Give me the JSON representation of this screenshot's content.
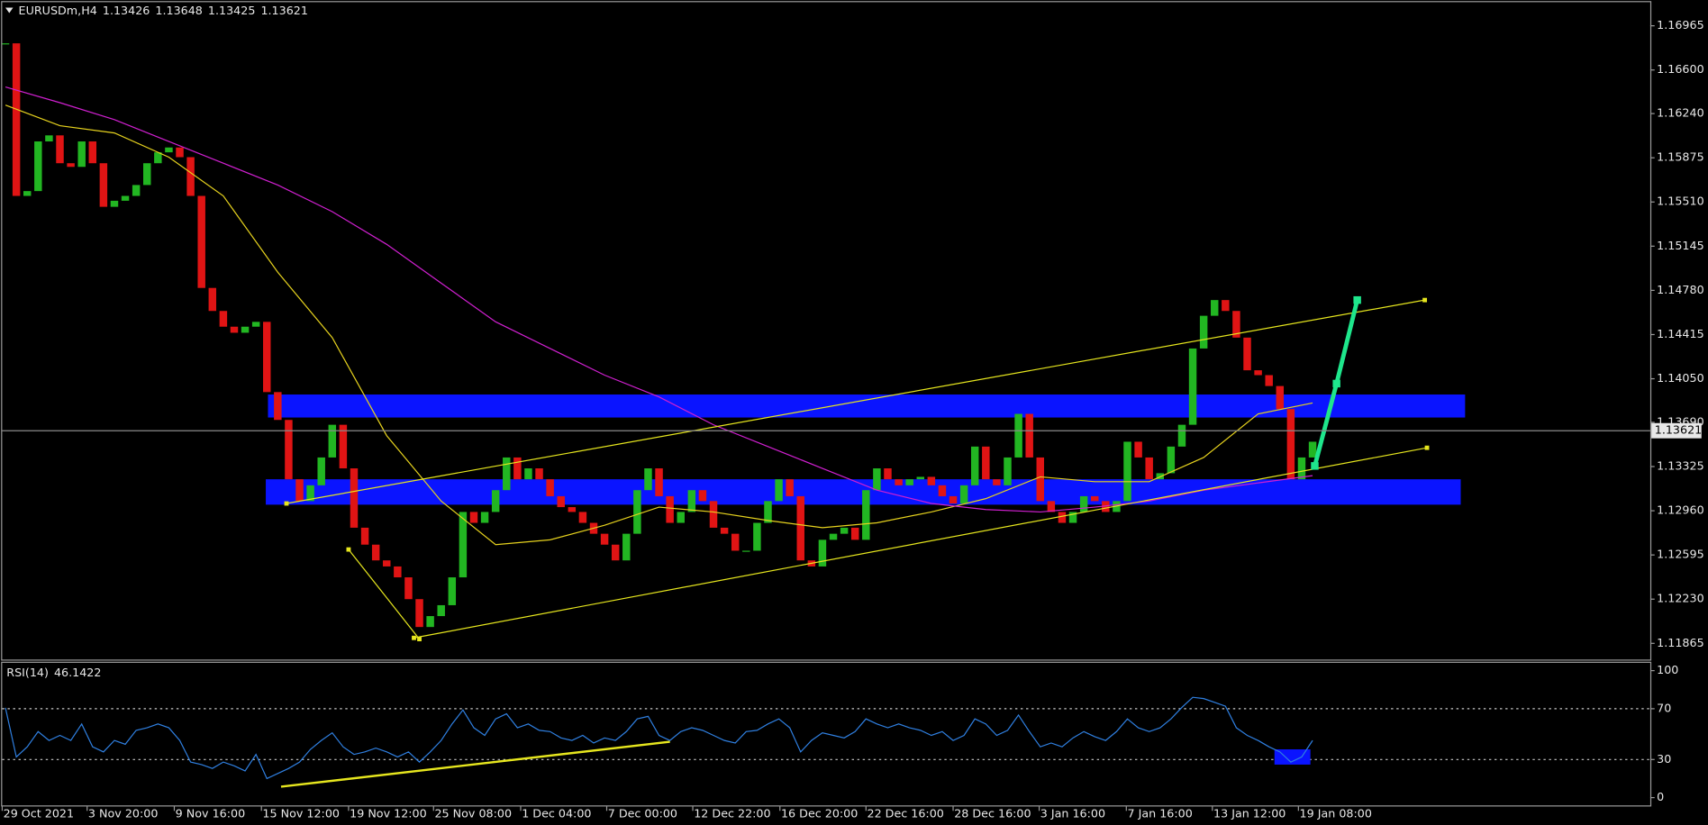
{
  "chart_data": [
    {
      "type": "candlestick",
      "symbol": "EURUSDm,H4",
      "ohlc": [
        1.13426,
        1.13648,
        1.13425,
        1.13621
      ],
      "current_price": 1.13621,
      "up_color": "#22b622",
      "down_color": "#e01414",
      "values": [
        1.1682,
        1.1556,
        1.156,
        1.1601,
        1.1606,
        1.1583,
        1.158,
        1.1601,
        1.1583,
        1.1547,
        1.1552,
        1.1556,
        1.1565,
        1.1583,
        1.1592,
        1.1596,
        1.1588,
        1.1556,
        1.148,
        1.1461,
        1.1448,
        1.1443,
        1.1448,
        1.1452,
        1.1394,
        1.1371,
        1.1322,
        1.1304,
        1.1317,
        1.134,
        1.1367,
        1.1331,
        1.1282,
        1.1268,
        1.1255,
        1.125,
        1.1241,
        1.1223,
        1.12,
        1.1209,
        1.1218,
        1.1241,
        1.1295,
        1.1286,
        1.1295,
        1.1313,
        1.134,
        1.1322,
        1.1331,
        1.1322,
        1.1308,
        1.1299,
        1.1295,
        1.1286,
        1.1277,
        1.1268,
        1.1255,
        1.1277,
        1.1313,
        1.1331,
        1.1308,
        1.1286,
        1.1295,
        1.1313,
        1.1304,
        1.1282,
        1.1277,
        1.1263,
        1.1263,
        1.1286,
        1.1304,
        1.1322,
        1.1308,
        1.1255,
        1.125,
        1.1272,
        1.1277,
        1.1282,
        1.1272,
        1.1313,
        1.1331,
        1.1322,
        1.1317,
        1.1322,
        1.1324,
        1.1317,
        1.1308,
        1.1302,
        1.1317,
        1.1349,
        1.1322,
        1.1317,
        1.134,
        1.1376,
        1.134,
        1.1304,
        1.1295,
        1.1286,
        1.1295,
        1.1308,
        1.1304,
        1.1295,
        1.1304,
        1.1353,
        1.134,
        1.1322,
        1.1327,
        1.1349,
        1.1367,
        1.143,
        1.1457,
        1.147,
        1.1461,
        1.1439,
        1.1412,
        1.1408,
        1.1399,
        1.138,
        1.1322,
        1.134,
        1.1353
      ],
      "overlays": [
        {
          "color": "#e6d21e",
          "x": [
            0,
            5,
            10,
            15,
            20,
            25,
            30,
            35,
            40,
            45,
            50,
            55,
            60,
            65,
            70,
            75,
            80,
            85,
            90,
            95,
            100,
            105,
            110,
            115,
            120
          ],
          "values": [
            1.1631,
            1.1614,
            1.1608,
            1.1588,
            1.1556,
            1.1493,
            1.1439,
            1.1358,
            1.1304,
            1.1268,
            1.1272,
            1.1284,
            1.1299,
            1.1295,
            1.1288,
            1.1282,
            1.1286,
            1.1295,
            1.1306,
            1.1324,
            1.132,
            1.132,
            1.134,
            1.1376,
            1.1385
          ]
        },
        {
          "color": "#d020d0",
          "x": [
            0,
            5,
            10,
            15,
            20,
            25,
            30,
            35,
            40,
            45,
            50,
            55,
            60,
            65,
            70,
            75,
            80,
            85,
            90,
            95,
            100,
            105,
            110,
            115,
            120
          ],
          "values": [
            1.1646,
            1.1633,
            1.1619,
            1.1601,
            1.1583,
            1.1565,
            1.1543,
            1.1516,
            1.1484,
            1.1452,
            1.143,
            1.1408,
            1.139,
            1.1367,
            1.1349,
            1.1331,
            1.1313,
            1.1302,
            1.1297,
            1.1295,
            1.1299,
            1.1304,
            1.1313,
            1.1319,
            1.1325
          ]
        }
      ],
      "zones": [
        {
          "color": "#0a14ff",
          "x": [
            24.1,
            134
          ],
          "range": [
            1.1373,
            1.1392
          ]
        },
        {
          "color": "#0a14ff",
          "x": [
            23.9,
            133.6
          ],
          "range": [
            1.1301,
            1.1322
          ]
        }
      ],
      "trendlines": [
        {
          "color": "#e6e61e",
          "x": [
            25.8,
            130.3
          ],
          "values": [
            1.1302,
            1.147
          ]
        },
        {
          "color": "#e6e61e",
          "x": [
            37.5,
            130.5
          ],
          "values": [
            1.1191,
            1.1348
          ]
        },
        {
          "color": "#e6e61e",
          "x": [
            31.5,
            38
          ],
          "values": [
            1.1264,
            1.119
          ]
        }
      ],
      "arrow": {
        "color": "#1ee68c",
        "x": [
          120.2,
          122.2,
          124.1
        ],
        "values": [
          1.1333,
          1.1401,
          1.147
        ]
      },
      "ylim": [
        1.1174,
        1.1716
      ],
      "yticks": [
        1.16965,
        {
          "value": 1.166,
          "label": "1.16600"
        },
        {
          "value": 1.1624,
          "label": "1.16240"
        },
        1.15875,
        {
          "value": 1.1551,
          "label": "1.15510"
        },
        1.15145,
        {
          "value": 1.1478,
          "label": "1.14780"
        },
        1.14415,
        {
          "value": 1.1405,
          "label": "1.14050"
        },
        {
          "value": 1.1369,
          "label": "1.13690"
        },
        1.13325,
        {
          "value": 1.1296,
          "label": "1.12960"
        },
        1.12595,
        {
          "value": 1.1223,
          "label": "1.12230"
        },
        1.11865
      ],
      "xlim": [
        -0.3,
        151
      ],
      "xticks": [
        {
          "value": -0.3,
          "label": "29 Oct 2021"
        },
        {
          "value": 7.5,
          "label": "3 Nov 20:00"
        },
        {
          "value": 15.5,
          "label": "9 Nov 16:00"
        },
        {
          "value": 23.5,
          "label": "15 Nov 12:00"
        },
        {
          "value": 31.5,
          "label": "19 Nov 12:00"
        },
        {
          "value": 39.3,
          "label": "25 Nov 08:00"
        },
        {
          "value": 47.3,
          "label": "1 Dec 04:00"
        },
        {
          "value": 55.2,
          "label": "7 Dec 00:00"
        },
        {
          "value": 63.1,
          "label": "12 Dec 22:00"
        },
        {
          "value": 71.1,
          "label": "16 Dec 20:00"
        },
        {
          "value": 79,
          "label": "22 Dec 16:00"
        },
        {
          "value": 87,
          "label": "28 Dec 16:00"
        },
        {
          "value": 94.9,
          "label": "3 Jan 16:00"
        },
        {
          "value": 102.9,
          "label": "7 Jan 16:00"
        },
        {
          "value": 110.8,
          "label": "13 Jan 12:00"
        },
        {
          "value": 118.7,
          "label": "19 Jan 08:00"
        }
      ]
    },
    {
      "type": "line",
      "title": "RSI(14)",
      "current": 46.1422,
      "color": "#2f7fe0",
      "values": [
        70.7,
        32,
        40,
        52,
        45,
        49,
        45,
        58,
        40,
        36,
        45,
        42,
        53,
        55,
        58,
        55,
        45,
        28,
        26,
        23,
        28,
        25,
        21,
        34,
        15,
        19,
        23,
        28,
        38,
        45,
        51,
        40,
        34,
        36,
        39,
        36,
        32,
        36,
        28,
        36,
        45,
        58,
        69,
        55,
        49,
        62,
        66,
        55,
        58,
        53,
        52,
        47,
        45,
        49,
        43,
        47,
        45,
        52,
        62,
        64,
        49,
        45,
        52,
        55,
        53,
        49,
        45,
        43,
        52,
        53,
        58,
        62,
        55,
        36,
        45,
        51,
        49,
        47,
        52,
        62,
        58,
        55,
        58,
        55,
        53,
        49,
        52,
        45,
        49,
        62,
        58,
        49,
        53,
        65,
        52,
        40,
        43,
        40,
        47,
        52,
        48,
        45,
        52,
        62,
        55,
        52,
        55,
        62,
        71,
        79,
        78,
        75,
        72,
        55,
        49,
        45,
        40,
        36,
        28,
        32,
        45
      ],
      "levels": [
        70,
        30
      ],
      "trendline": {
        "color": "#e6e61e",
        "x": [
          25.3,
          61
        ],
        "values": [
          8.6,
          44
        ]
      },
      "zone": {
        "color": "#0a14ff",
        "x": [
          116.5,
          119.8
        ],
        "range": [
          26,
          38
        ]
      },
      "ylim": [
        -7,
        107
      ],
      "yticks": [
        100,
        70,
        30,
        0
      ]
    }
  ]
}
